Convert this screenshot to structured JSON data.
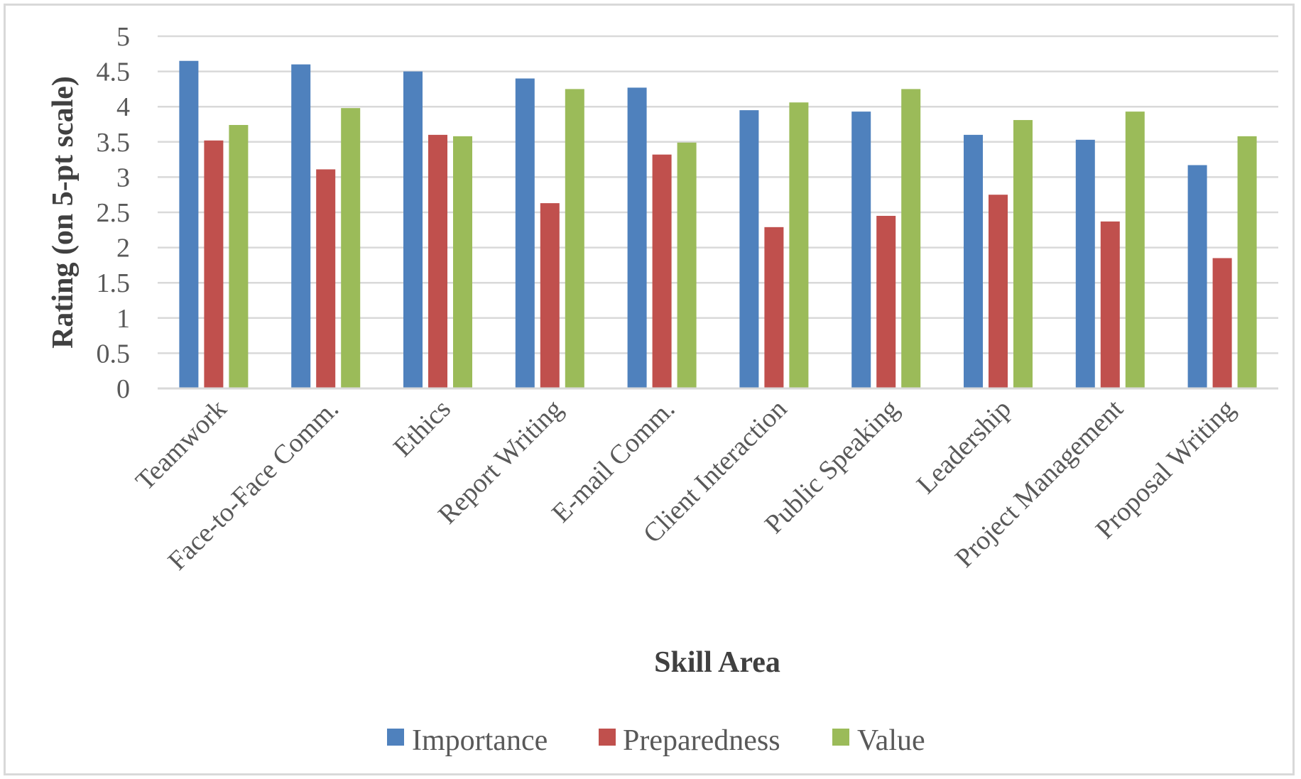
{
  "chart_data": {
    "type": "bar",
    "title": "",
    "xlabel": "Skill Area",
    "ylabel": "Rating (on 5-pt scale)",
    "ylim": [
      0,
      5
    ],
    "yticks": [
      0,
      0.5,
      1,
      1.5,
      2,
      2.5,
      3,
      3.5,
      4,
      4.5,
      5
    ],
    "ytick_labels": [
      "0",
      "0.5",
      "1",
      "1.5",
      "2",
      "2.5",
      "3",
      "3.5",
      "4",
      "4.5",
      "5"
    ],
    "grid": true,
    "legend_position": "bottom",
    "categories": [
      "Teamwork",
      "Face-to-Face Comm.",
      "Ethics",
      "Report Writing",
      "E-mail Comm.",
      "Client Interaction",
      "Public Speaking",
      "Leadership",
      "Project Management",
      "Proposal Writing"
    ],
    "series": [
      {
        "name": "Importance",
        "color": "#4f81bd",
        "values": [
          4.65,
          4.6,
          4.5,
          4.4,
          4.27,
          3.95,
          3.93,
          3.6,
          3.53,
          3.17
        ]
      },
      {
        "name": "Preparedness",
        "color": "#c0504d",
        "values": [
          3.52,
          3.11,
          3.6,
          2.63,
          3.32,
          2.29,
          2.45,
          2.75,
          2.37,
          1.85
        ]
      },
      {
        "name": "Value",
        "color": "#9bbb59",
        "values": [
          3.74,
          3.98,
          3.58,
          4.25,
          3.49,
          4.06,
          4.25,
          3.81,
          3.93,
          3.58
        ]
      }
    ]
  }
}
